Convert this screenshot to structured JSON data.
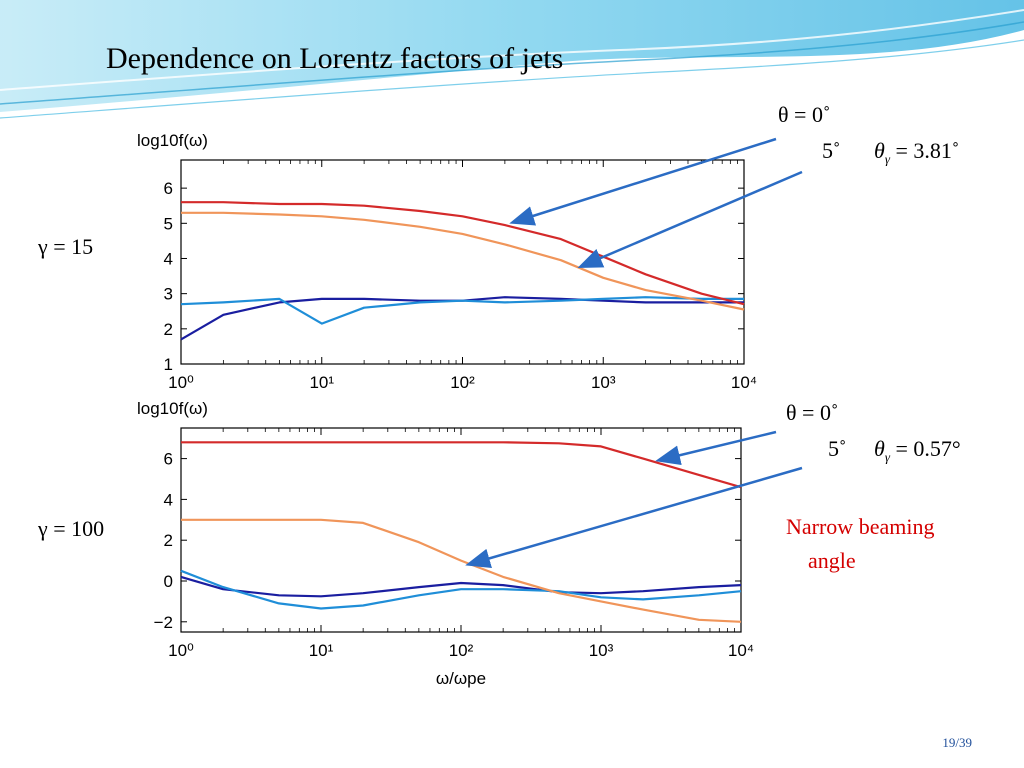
{
  "slide": {
    "title": "Dependence on Lorentz factors of jets",
    "page": "19/39"
  },
  "annotations": {
    "top": {
      "gamma_label": "γ = 15",
      "theta0": "θ = 0˚",
      "theta5": "5˚",
      "theta_gamma_symbol": "θ",
      "theta_gamma_sub": "γ",
      "theta_gamma_value": "= 3.81˚"
    },
    "bottom": {
      "gamma_label": "γ = 100",
      "theta0": "θ = 0˚",
      "theta5": "5˚",
      "theta_gamma_symbol": "θ",
      "theta_gamma_sub": "γ",
      "theta_gamma_value": "= 0.57°"
    },
    "narrow_line1": "Narrow beaming",
    "narrow_line2": "angle"
  },
  "colors": {
    "red": "#d42a2a",
    "orange": "#f0955a",
    "blue": "#1f8ed8",
    "navy": "#1a1ea0",
    "arrow": "#2b6cc4",
    "wave": "#5fc3e6"
  },
  "chart_data": [
    {
      "type": "line",
      "ylabel": "log10f(ω)",
      "xlabel": "",
      "xscale": "log",
      "xlim": [
        1,
        10000
      ],
      "ylim": [
        1,
        6.8
      ],
      "yticks": [
        1,
        2,
        3,
        4,
        5,
        6
      ],
      "x": [
        1,
        2,
        5,
        10,
        20,
        50,
        100,
        200,
        500,
        1000,
        2000,
        5000,
        10000
      ],
      "series": [
        {
          "name": "θ = 0˚",
          "color_key": "red",
          "values": [
            5.6,
            5.6,
            5.55,
            5.55,
            5.5,
            5.35,
            5.2,
            4.95,
            4.55,
            4.05,
            3.55,
            3.0,
            2.7
          ]
        },
        {
          "name": "5˚",
          "color_key": "orange",
          "values": [
            5.3,
            5.3,
            5.25,
            5.2,
            5.1,
            4.9,
            4.7,
            4.4,
            3.95,
            3.45,
            3.1,
            2.8,
            2.55
          ]
        },
        {
          "name": "",
          "color_key": "blue",
          "values": [
            2.7,
            2.75,
            2.85,
            2.15,
            2.6,
            2.75,
            2.8,
            2.75,
            2.8,
            2.85,
            2.9,
            2.85,
            2.85
          ]
        },
        {
          "name": "",
          "color_key": "navy",
          "values": [
            1.7,
            2.4,
            2.75,
            2.85,
            2.85,
            2.8,
            2.8,
            2.9,
            2.85,
            2.8,
            2.75,
            2.75,
            2.75
          ]
        }
      ]
    },
    {
      "type": "line",
      "ylabel": "log10f(ω)",
      "xlabel": "ω/ωpe",
      "xscale": "log",
      "xlim": [
        1,
        10000
      ],
      "ylim": [
        -2.5,
        7.5
      ],
      "yticks": [
        -2,
        0,
        2,
        4,
        6
      ],
      "x": [
        1,
        2,
        5,
        10,
        20,
        50,
        100,
        200,
        500,
        1000,
        2000,
        5000,
        10000
      ],
      "series": [
        {
          "name": "θ = 0˚",
          "color_key": "red",
          "values": [
            6.8,
            6.8,
            6.8,
            6.8,
            6.8,
            6.8,
            6.8,
            6.8,
            6.75,
            6.6,
            6.0,
            5.2,
            4.6
          ]
        },
        {
          "name": "5˚",
          "color_key": "orange",
          "values": [
            3.0,
            3.0,
            3.0,
            3.0,
            2.85,
            1.9,
            1.0,
            0.2,
            -0.6,
            -1.0,
            -1.4,
            -1.9,
            -2.0
          ]
        },
        {
          "name": "",
          "color_key": "blue",
          "values": [
            0.5,
            -0.3,
            -1.1,
            -1.35,
            -1.2,
            -0.7,
            -0.4,
            -0.4,
            -0.5,
            -0.8,
            -0.9,
            -0.7,
            -0.5
          ]
        },
        {
          "name": "",
          "color_key": "navy",
          "values": [
            0.2,
            -0.4,
            -0.7,
            -0.75,
            -0.6,
            -0.3,
            -0.1,
            -0.2,
            -0.55,
            -0.6,
            -0.5,
            -0.3,
            -0.2
          ]
        }
      ]
    }
  ]
}
